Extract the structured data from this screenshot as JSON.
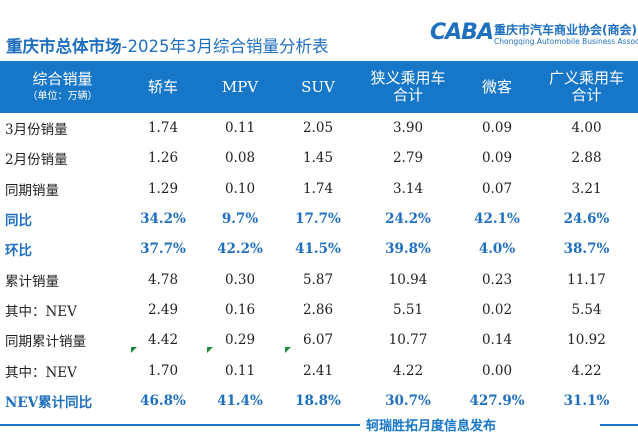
{
  "title": {
    "bold": "重庆市总体市场",
    "rest": "-2025年3月综合销量分析表"
  },
  "logo": {
    "mark": "CABA",
    "cn": "重庆市汽车商业协会(商会)",
    "en": "Chongqing Automobile Business Association"
  },
  "header": {
    "c0": "综合销量",
    "unit": "（单位：万辆）",
    "c1": "轿车",
    "c2": "MPV",
    "c3": "SUV",
    "c4a": "狭义乘用车",
    "c4b": "合计",
    "c5": "微客",
    "c6a": "广义乘用车",
    "c6b": "合计"
  },
  "rows": [
    {
      "label": "3月份销量",
      "v": [
        "1.74",
        "0.11",
        "2.05",
        "3.90",
        "0.09",
        "4.00"
      ]
    },
    {
      "label": "2月份销量",
      "v": [
        "1.26",
        "0.08",
        "1.45",
        "2.79",
        "0.09",
        "2.88"
      ]
    },
    {
      "label": "同期销量",
      "v": [
        "1.29",
        "0.10",
        "1.74",
        "3.14",
        "0.07",
        "3.21"
      ]
    },
    {
      "label": "同比",
      "v": [
        "34.2%",
        "9.7%",
        "17.7%",
        "24.2%",
        "42.1%",
        "24.6%"
      ]
    },
    {
      "label": "环比",
      "v": [
        "37.7%",
        "42.2%",
        "41.5%",
        "39.8%",
        "4.0%",
        "38.7%"
      ]
    },
    {
      "label": "累计销量",
      "v": [
        "4.78",
        "0.30",
        "5.87",
        "10.94",
        "0.23",
        "11.17"
      ]
    },
    {
      "label": "其中：NEV",
      "v": [
        "2.49",
        "0.16",
        "2.86",
        "5.51",
        "0.02",
        "5.54"
      ]
    },
    {
      "label": "同期累计销量",
      "v": [
        "4.42",
        "0.29",
        "6.07",
        "10.77",
        "0.14",
        "10.92"
      ]
    },
    {
      "label": "其中：NEV",
      "v": [
        "1.70",
        "0.11",
        "2.41",
        "4.22",
        "0.00",
        "4.22"
      ]
    },
    {
      "label": "NEV累计同比",
      "v": [
        "46.8%",
        "41.4%",
        "18.8%",
        "30.7%",
        "427.9%",
        "31.1%"
      ]
    }
  ],
  "footer": "轲瑞胜拓月度信息发布",
  "colors": {
    "accent": "#1676c8",
    "highlight_text": "#1f6fbf",
    "marker": "#1e8a3a"
  }
}
